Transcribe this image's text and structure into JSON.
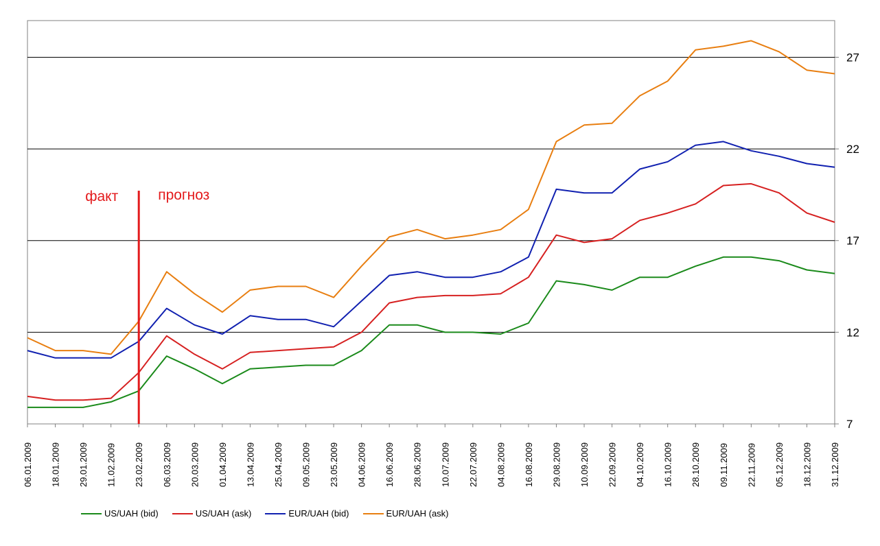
{
  "chart_data": {
    "type": "line",
    "title": "",
    "xlabel": "",
    "ylabel": "",
    "ylim": [
      7,
      29
    ],
    "yticks": [
      7,
      12,
      17,
      22,
      27
    ],
    "y_axis_side": "right",
    "grid": "horizontal",
    "legend_position": "bottom",
    "x_tick_labels": [
      "06.01.2009",
      "18.01.2009",
      "29.01.2009",
      "11.02.2009",
      "23.02.2009",
      "06.03.2009",
      "20.03.2009",
      "01.04.2009",
      "13.04.2009",
      "25.04.2009",
      "09.05.2009",
      "23.05.2009",
      "04.06.2009",
      "16.06.2009",
      "28.06.2009",
      "10.07.2009",
      "22.07.2009",
      "04.08.2009",
      "16.08.2009",
      "29.08.2009",
      "10.09.2009",
      "22.09.2009",
      "04.10.2009",
      "16.10.2009",
      "28.10.2009",
      "09.11.2009",
      "22.11.2009",
      "05.12.2009",
      "18.12.2009",
      "31.12.2009"
    ],
    "annotations": {
      "divider_at": "23.02.2009",
      "divider_color": "#e31a1c",
      "left_label": "факт",
      "right_label": "прогноз"
    },
    "x": [
      "06.01.2009",
      "18.01.2009",
      "29.01.2009",
      "11.02.2009",
      "23.02.2009",
      "06.03.2009",
      "20.03.2009",
      "01.04.2009",
      "13.04.2009",
      "25.04.2009",
      "09.05.2009",
      "23.05.2009",
      "04.06.2009",
      "16.06.2009",
      "28.06.2009",
      "10.07.2009",
      "22.07.2009",
      "04.08.2009",
      "16.08.2009",
      "29.08.2009",
      "10.09.2009",
      "22.09.2009",
      "04.10.2009",
      "16.10.2009",
      "28.10.2009",
      "09.11.2009",
      "22.11.2009",
      "05.12.2009",
      "18.12.2009",
      "31.12.2009"
    ],
    "series": [
      {
        "name": "US/UAH (bid)",
        "color": "#1a8a1a",
        "values": [
          7.9,
          7.9,
          7.9,
          8.2,
          8.8,
          10.7,
          10.0,
          9.2,
          10.0,
          10.1,
          10.2,
          10.2,
          11.0,
          12.4,
          12.4,
          12.0,
          12.0,
          11.9,
          12.5,
          14.8,
          14.6,
          14.3,
          15.0,
          15.0,
          15.6,
          16.1,
          16.1,
          15.9,
          15.4,
          15.2
        ]
      },
      {
        "name": "US/UAH (ask)",
        "color": "#d62020",
        "values": [
          8.5,
          8.3,
          8.3,
          8.4,
          9.8,
          11.8,
          10.8,
          10.0,
          10.9,
          11.0,
          11.1,
          11.2,
          12.0,
          13.6,
          13.9,
          14.0,
          14.0,
          14.1,
          15.0,
          17.3,
          16.9,
          17.1,
          18.1,
          18.5,
          19.0,
          20.0,
          20.1,
          19.6,
          18.5,
          18.0
        ]
      },
      {
        "name": "EUR/UAH (bid)",
        "color": "#1020b0",
        "values": [
          11.0,
          10.6,
          10.6,
          10.6,
          11.5,
          13.3,
          12.4,
          11.9,
          12.9,
          12.7,
          12.7,
          12.3,
          13.7,
          15.1,
          15.3,
          15.0,
          15.0,
          15.3,
          16.1,
          19.8,
          19.6,
          19.6,
          20.9,
          21.3,
          22.2,
          22.4,
          21.9,
          21.6,
          21.2,
          21.0
        ]
      },
      {
        "name": "EUR/UAH (ask)",
        "color": "#e87e10",
        "values": [
          11.7,
          11.0,
          11.0,
          10.8,
          12.6,
          15.3,
          14.1,
          13.1,
          14.3,
          14.5,
          14.5,
          13.9,
          15.6,
          17.2,
          17.6,
          17.1,
          17.3,
          17.6,
          18.7,
          22.4,
          23.3,
          23.4,
          24.9,
          25.7,
          27.4,
          27.6,
          27.9,
          27.3,
          26.3,
          26.1
        ]
      }
    ]
  }
}
